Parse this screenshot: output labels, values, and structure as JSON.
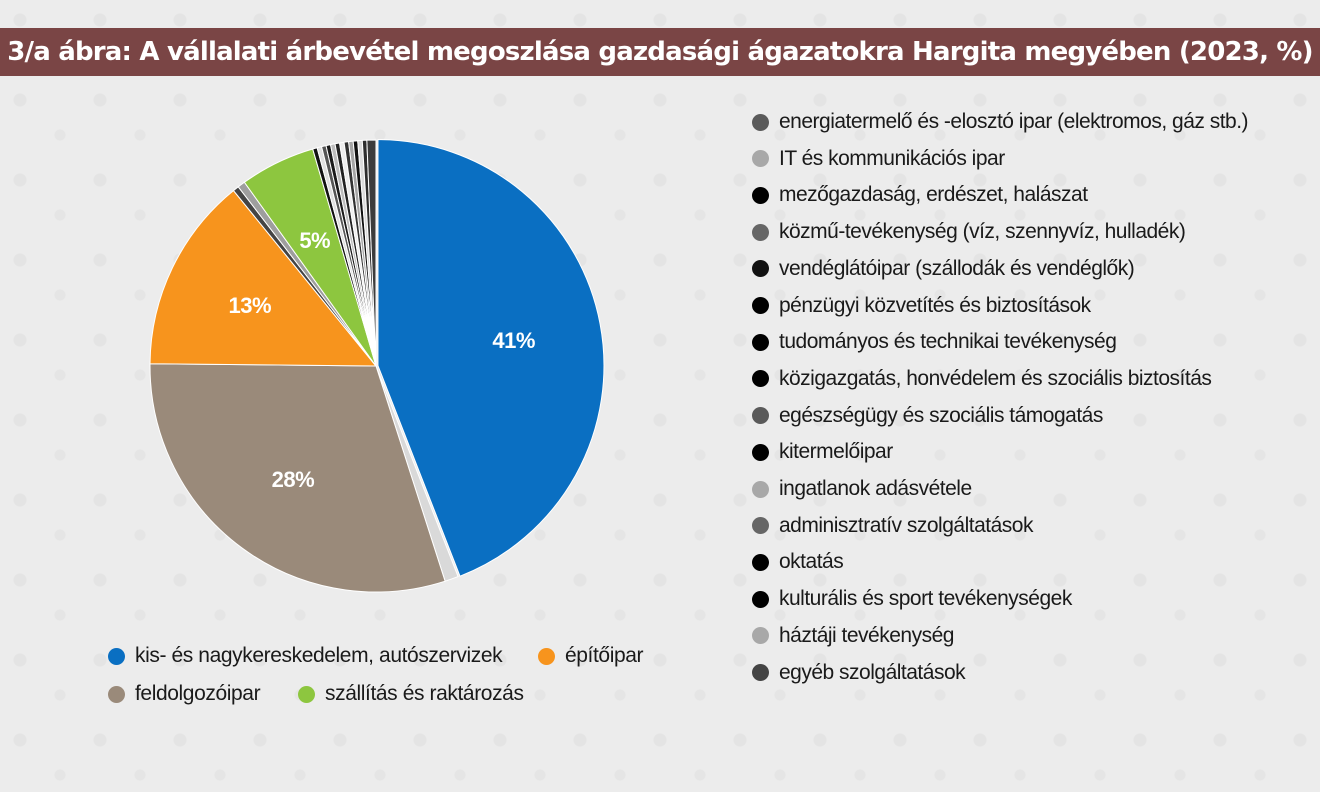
{
  "title": "3/a ábra: A vállalati árbevétel megoszlása gazdasági ágazatokra Hargita megyében (2023, %)",
  "chart_data": {
    "type": "pie",
    "title": "3/a ábra: A vállalati árbevétel megoszlása gazdasági ágazatokra Hargita megyében (2023, %)",
    "slices": [
      {
        "name": "kis- és nagykereskedelem, autószervizek",
        "value": 41,
        "label": "41%",
        "color": "#0a6fc2"
      },
      {
        "name": "energiatermelő és -elosztó ipar (elektromos, gáz stb.)",
        "value": 0.9,
        "label": "",
        "color": "#d9d9d9"
      },
      {
        "name": "feldolgozóipar",
        "value": 28,
        "label": "28%",
        "color": "#9a8a7a"
      },
      {
        "name": "építőipar",
        "value": 13,
        "label": "13%",
        "color": "#f7941d"
      },
      {
        "name": "IT és kommunikációs ipar",
        "value": 0.4,
        "label": "",
        "color": "#444444"
      },
      {
        "name": "mezőgazdaság, erdészet, halászat",
        "value": 0.5,
        "label": "",
        "color": "#9e9e9e"
      },
      {
        "name": "szállítás és raktározás",
        "value": 5,
        "label": "5%",
        "color": "#8dc63f"
      },
      {
        "name": "közmű-tevékenység (víz, szennyvíz, hulladék)",
        "value": 0.3,
        "label": "",
        "color": "#111111"
      },
      {
        "name": "vendéglátóipar (szállodák és vendéglők)",
        "value": 0.3,
        "label": "",
        "color": "#e0e0e0"
      },
      {
        "name": "pénzügyi közvetítés és biztosítások",
        "value": 0.3,
        "label": "",
        "color": "#555555"
      },
      {
        "name": "tudományos és technikai tevékenység",
        "value": 0.3,
        "label": "",
        "color": "#1a1a1a"
      },
      {
        "name": "közigazgatás, honvédelem és szociális biztosítás",
        "value": 0.3,
        "label": "",
        "color": "#bdbdbd"
      },
      {
        "name": "egészségügy és szociális támogatás",
        "value": 0.3,
        "label": "",
        "color": "#222222"
      },
      {
        "name": "kitermelőipar",
        "value": 0.3,
        "label": "",
        "color": "#eeeeee"
      },
      {
        "name": "ingatlanok adásvétele",
        "value": 0.3,
        "label": "",
        "color": "#333333"
      },
      {
        "name": "adminisztratív szolgáltatások",
        "value": 0.3,
        "label": "",
        "color": "#a5a5a5"
      },
      {
        "name": "oktatás",
        "value": 0.3,
        "label": "",
        "color": "#111111"
      },
      {
        "name": "kulturális és sport tevékenységek",
        "value": 0.3,
        "label": "",
        "color": "#dcdcdc"
      },
      {
        "name": "háztáji tevékenység",
        "value": 0.3,
        "label": "",
        "color": "#2e2e2e"
      },
      {
        "name": "egyéb szolgáltatások",
        "value": 0.6,
        "label": "",
        "color": "#3c3c3c"
      }
    ]
  },
  "legend_bottom": [
    {
      "label": "kis- és nagykereskedelem, autószervizek",
      "color": "#0a6fc2"
    },
    {
      "label": "építőipar",
      "color": "#f7941d"
    },
    {
      "label": "feldolgozóipar",
      "color": "#9a8a7a"
    },
    {
      "label": "szállítás és raktározás",
      "color": "#8dc63f"
    }
  ],
  "legend_right": [
    {
      "label": "energiatermelő és -elosztó ipar (elektromos, gáz stb.)",
      "color": "#5a5a5a"
    },
    {
      "label": "IT és kommunikációs ipar",
      "color": "#a8a8a8"
    },
    {
      "label": "mezőgazdaság, erdészet, halászat",
      "color": "#000000"
    },
    {
      "label": "közmű-tevékenység (víz, szennyvíz, hulladék)",
      "color": "#666666"
    },
    {
      "label": "vendéglátóipar (szállodák és vendéglők)",
      "color": "#111111"
    },
    {
      "label": "pénzügyi közvetítés és biztosítások",
      "color": "#000000"
    },
    {
      "label": "tudományos és technikai tevékenység",
      "color": "#000000"
    },
    {
      "label": "közigazgatás, honvédelem és szociális biztosítás",
      "color": "#000000"
    },
    {
      "label": "egészségügy és szociális támogatás",
      "color": "#5a5a5a"
    },
    {
      "label": "kitermelőipar",
      "color": "#000000"
    },
    {
      "label": "ingatlanok adásvétele",
      "color": "#a8a8a8"
    },
    {
      "label": "adminisztratív szolgáltatások",
      "color": "#666666"
    },
    {
      "label": "oktatás",
      "color": "#000000"
    },
    {
      "label": "kulturális és sport tevékenységek",
      "color": "#000000"
    },
    {
      "label": "háztáji tevékenység",
      "color": "#a8a8a8"
    },
    {
      "label": "egyéb szolgáltatások",
      "color": "#444444"
    }
  ]
}
